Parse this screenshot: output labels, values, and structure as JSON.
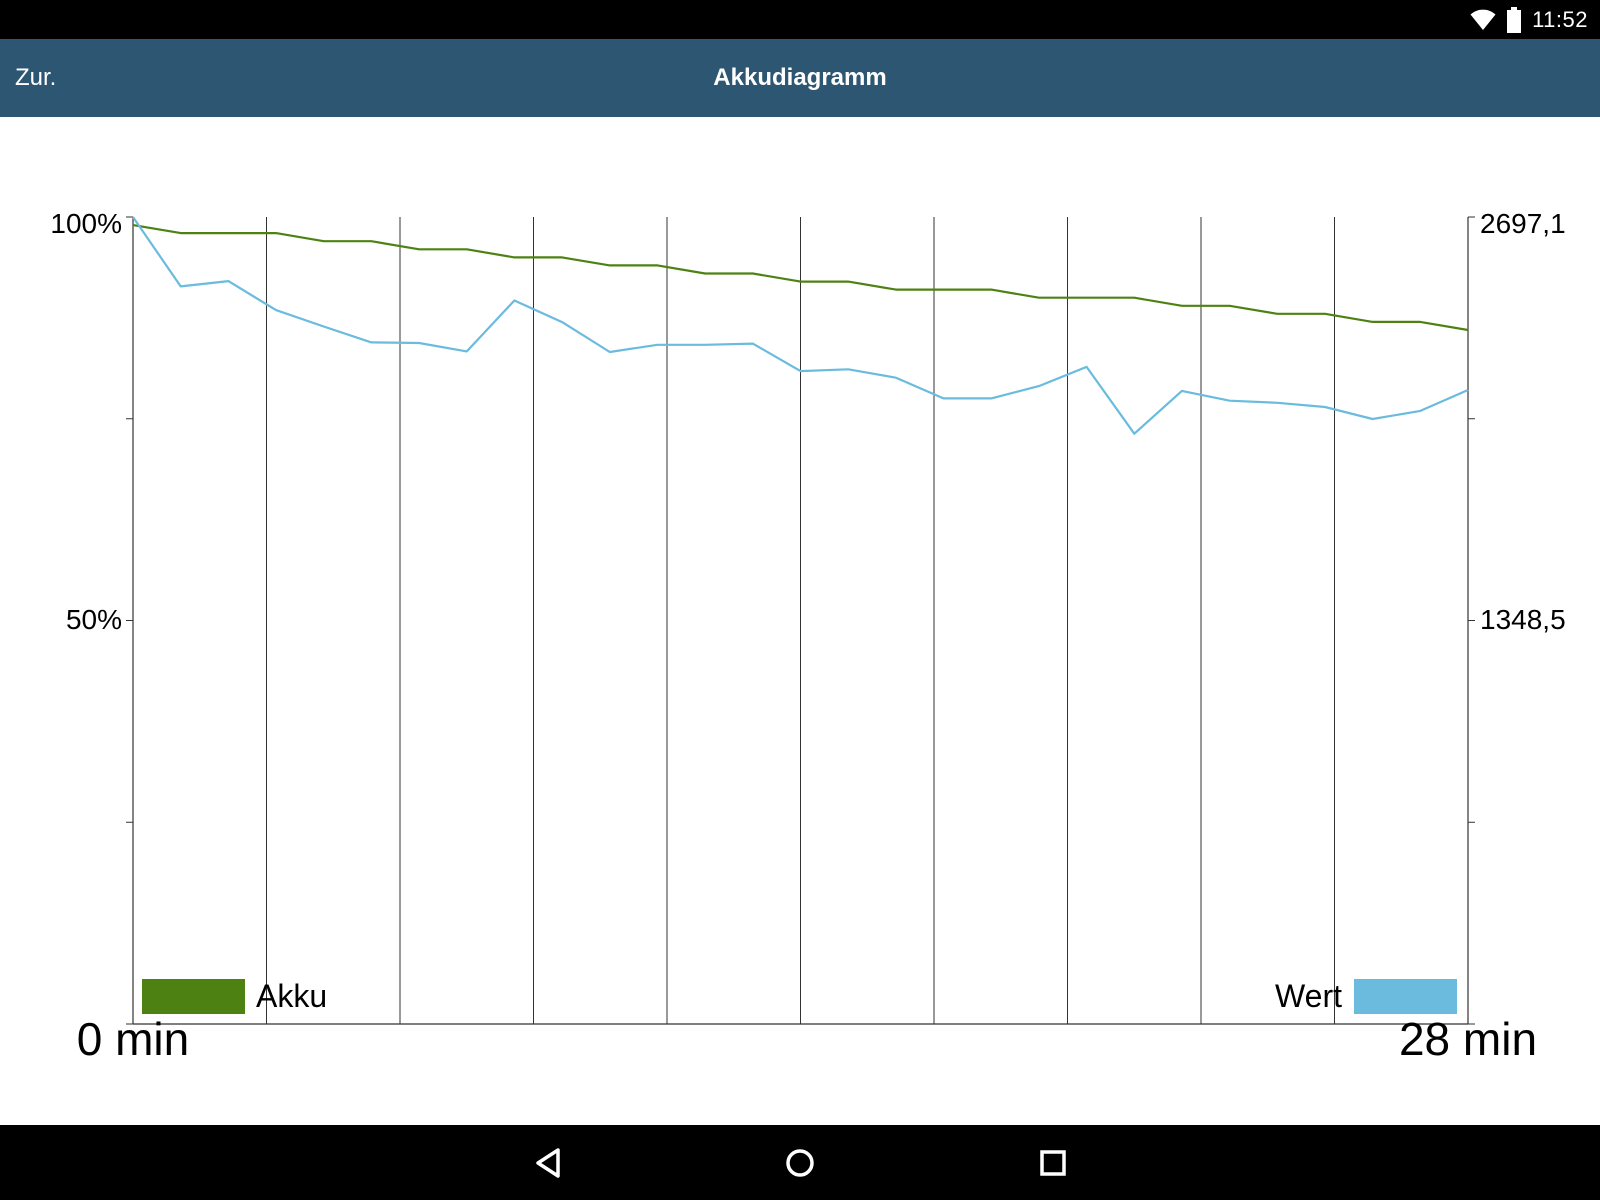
{
  "status_bar": {
    "time": "11:52",
    "icons": [
      "wifi-icon",
      "battery-icon"
    ]
  },
  "app_bar": {
    "back_label": "Zur.",
    "title": "Akkudiagramm",
    "background": "#2d5673"
  },
  "chart_data": {
    "type": "line",
    "title": "",
    "x_start_label": "0 min",
    "x_end_label": "28 min",
    "xlim": [
      0,
      28
    ],
    "grid": "vertical",
    "y_left": {
      "ticks": [
        "100%",
        "50%"
      ],
      "range": [
        0,
        100
      ]
    },
    "y_right": {
      "ticks": [
        "2697,1",
        "1348,5"
      ],
      "range": [
        0,
        2697.1
      ]
    },
    "legend": [
      {
        "label": "Akku",
        "color": "#4d8213",
        "placement": "bottom-left"
      },
      {
        "label": "Wert",
        "color": "#6abbde",
        "placement": "bottom-right"
      }
    ],
    "series": [
      {
        "name": "Akku",
        "axis": "left",
        "color": "#4d8213",
        "points": [
          [
            0,
            99
          ],
          [
            1,
            98
          ],
          [
            2,
            98
          ],
          [
            3,
            98
          ],
          [
            4,
            97
          ],
          [
            5,
            97
          ],
          [
            6,
            96
          ],
          [
            7,
            96
          ],
          [
            8,
            95
          ],
          [
            9,
            95
          ],
          [
            10,
            94
          ],
          [
            11,
            94
          ],
          [
            12,
            93
          ],
          [
            13,
            93
          ],
          [
            14,
            92
          ],
          [
            15,
            92
          ],
          [
            16,
            91
          ],
          [
            17,
            91
          ],
          [
            18,
            91
          ],
          [
            19,
            90
          ],
          [
            20,
            90
          ],
          [
            21,
            90
          ],
          [
            22,
            89
          ],
          [
            23,
            89
          ],
          [
            24,
            88
          ],
          [
            25,
            88
          ],
          [
            26,
            87
          ],
          [
            27,
            87
          ],
          [
            28,
            86
          ]
        ]
      },
      {
        "name": "Wert",
        "axis": "right",
        "color": "#6abbde",
        "points": [
          [
            0,
            2697
          ],
          [
            1,
            2465
          ],
          [
            2,
            2483
          ],
          [
            3,
            2386
          ],
          [
            4,
            2331
          ],
          [
            5,
            2278
          ],
          [
            6,
            2276
          ],
          [
            7,
            2248
          ],
          [
            8,
            2418
          ],
          [
            9,
            2346
          ],
          [
            10,
            2246
          ],
          [
            11,
            2270
          ],
          [
            12,
            2270
          ],
          [
            13,
            2274
          ],
          [
            14,
            2182
          ],
          [
            15,
            2188
          ],
          [
            16,
            2160
          ],
          [
            17,
            2091
          ],
          [
            18,
            2091
          ],
          [
            19,
            2132
          ],
          [
            20,
            2196
          ],
          [
            21,
            1973
          ],
          [
            22,
            2116
          ],
          [
            23,
            2083
          ],
          [
            24,
            2076
          ],
          [
            25,
            2062
          ],
          [
            26,
            2022
          ],
          [
            27,
            2049
          ],
          [
            28,
            2119
          ]
        ]
      }
    ]
  },
  "nav_bar": {
    "buttons": [
      "back-nav-icon",
      "home-nav-icon",
      "recents-nav-icon"
    ]
  }
}
